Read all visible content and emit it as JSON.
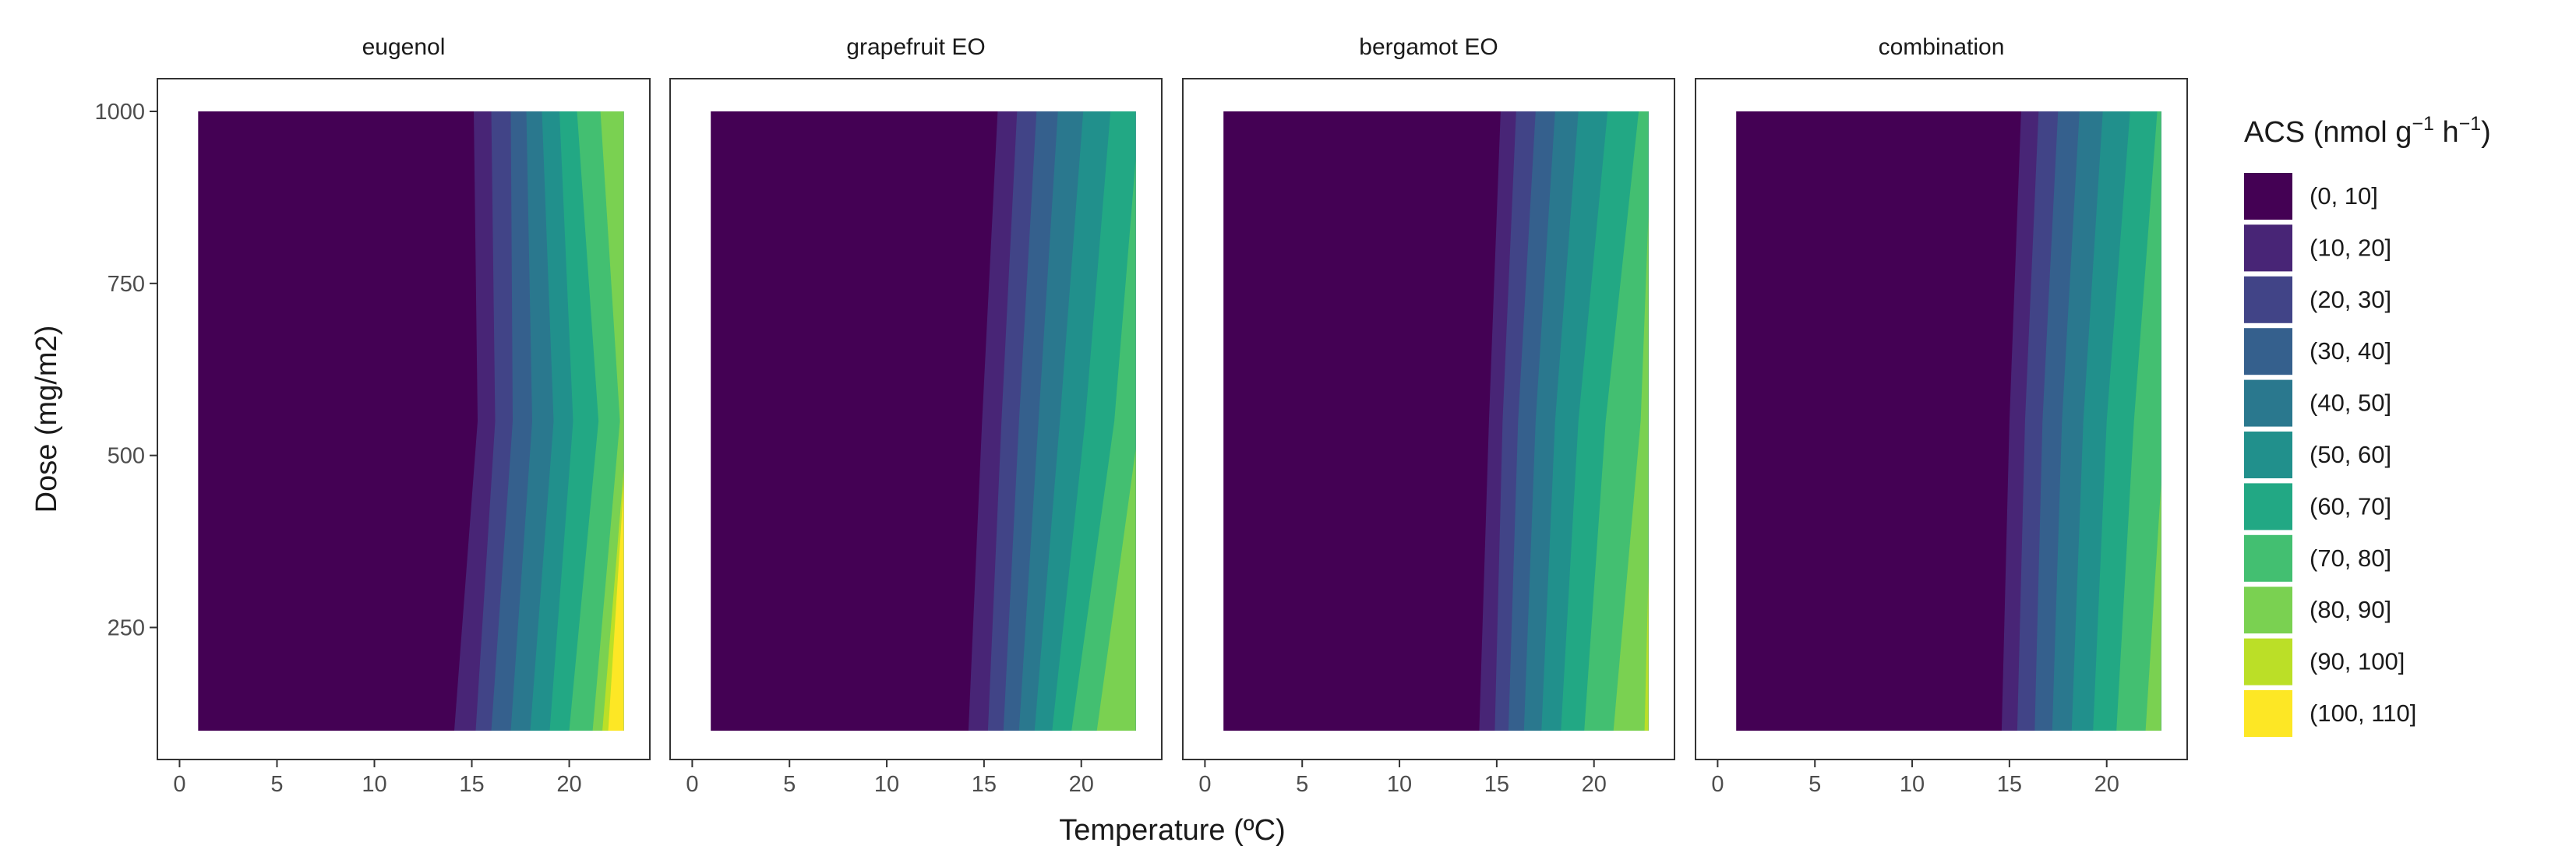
{
  "chart_data": {
    "type": "heatmap",
    "subtype": "filled-contour",
    "facets": [
      "eugenol",
      "grapefruit EO",
      "bergamot EO",
      "combination"
    ],
    "xlabel": "Temperature (ºC)",
    "ylabel": "Dose (mg/m2)",
    "xlim": [
      0,
      23
    ],
    "ylim": [
      100,
      1000
    ],
    "x_ticks": [
      0,
      5,
      10,
      15,
      20
    ],
    "x_tick_labels": [
      "0",
      "5",
      "10",
      "15",
      "20"
    ],
    "y_ticks": [
      250,
      500,
      750,
      1000
    ],
    "y_tick_labels": [
      "250",
      "500",
      "750",
      "1000"
    ],
    "grid": false,
    "legend": {
      "title_main": "ACS (nmol g",
      "title_sup1": "−1",
      "title_mid": " h",
      "title_sup2": "−1",
      "title_end": ")",
      "placement": "right",
      "levels": [
        {
          "label": "(0, 10]",
          "color": "#440154"
        },
        {
          "label": "(10, 20]",
          "color": "#482576"
        },
        {
          "label": "(20, 30]",
          "color": "#414487"
        },
        {
          "label": "(30, 40]",
          "color": "#35608D"
        },
        {
          "label": "(40, 50]",
          "color": "#2A788E"
        },
        {
          "label": "(50, 60]",
          "color": "#21908C"
        },
        {
          "label": "(60, 70]",
          "color": "#22A884"
        },
        {
          "label": "(70, 80]",
          "color": "#43BF71"
        },
        {
          "label": "(80, 90]",
          "color": "#7AD151"
        },
        {
          "label": "(90, 100]",
          "color": "#BBDF27"
        },
        {
          "label": "(100, 110]",
          "color": "#FDE725"
        }
      ]
    },
    "panels": [
      {
        "name": "eugenol",
        "contour_temps_at_dose": [
          {
            "dose": 100,
            "boundaries_C": [
              14.1,
              15.2,
              16.0,
              17.0,
              18.0,
              19.0,
              20.0,
              21.2,
              21.7,
              22.0
            ]
          },
          {
            "dose": 550,
            "boundaries_C": [
              15.3,
              16.2,
              17.1,
              18.1,
              19.2,
              20.2,
              21.5,
              22.6,
              23.0,
              23.0
            ]
          },
          {
            "dose": 1000,
            "boundaries_C": [
              15.1,
              16.0,
              17.0,
              17.8,
              18.6,
              19.5,
              20.4,
              21.6,
              23.0,
              23.0
            ]
          }
        ]
      },
      {
        "name": "grapefruit EO",
        "contour_temps_at_dose": [
          {
            "dose": 100,
            "boundaries_C": [
              14.2,
              15.2,
              16.0,
              16.8,
              17.6,
              18.5,
              19.5,
              20.8,
              23.0,
              23.0
            ]
          },
          {
            "dose": 550,
            "boundaries_C": [
              14.9,
              15.9,
              16.8,
              17.8,
              18.9,
              20.2,
              21.7,
              23.0,
              23.0,
              23.0
            ]
          },
          {
            "dose": 1000,
            "boundaries_C": [
              15.7,
              16.7,
              17.7,
              18.8,
              20.1,
              21.5,
              23.0,
              23.0,
              23.0,
              23.0
            ]
          }
        ]
      },
      {
        "name": "bergamot EO",
        "contour_temps_at_dose": [
          {
            "dose": 100,
            "boundaries_C": [
              14.1,
              14.9,
              15.6,
              16.4,
              17.3,
              18.3,
              19.5,
              21.0,
              22.6,
              23.0
            ]
          },
          {
            "dose": 550,
            "boundaries_C": [
              14.6,
              15.3,
              16.1,
              17.0,
              18.0,
              19.2,
              20.6,
              22.4,
              23.0,
              23.0
            ]
          },
          {
            "dose": 1000,
            "boundaries_C": [
              15.2,
              16.0,
              17.0,
              18.0,
              19.2,
              20.7,
              22.3,
              23.0,
              23.0,
              23.0
            ]
          }
        ]
      },
      {
        "name": "combination",
        "contour_temps_at_dose": [
          {
            "dose": 100,
            "boundaries_C": [
              14.6,
              15.4,
              16.3,
              17.2,
              18.2,
              19.3,
              20.5,
              22.0,
              23.0,
              23.0
            ]
          },
          {
            "dose": 550,
            "boundaries_C": [
              15.0,
              15.8,
              16.7,
              17.7,
              18.8,
              20.0,
              21.4,
              23.0,
              23.0,
              23.0
            ]
          },
          {
            "dose": 1000,
            "boundaries_C": [
              15.6,
              16.5,
              17.5,
              18.6,
              19.8,
              21.2,
              22.6,
              23.0,
              23.0,
              23.0
            ]
          }
        ]
      }
    ]
  }
}
